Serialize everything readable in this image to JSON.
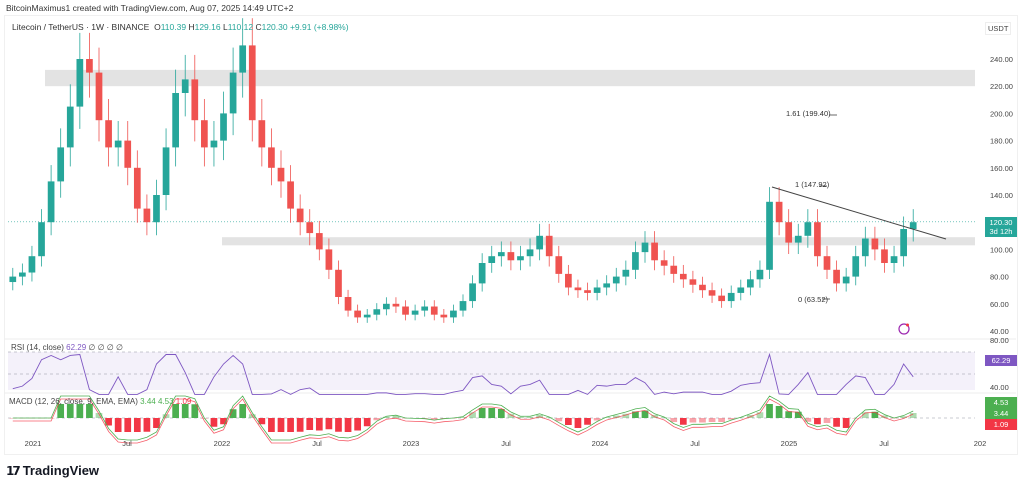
{
  "attribution": "BitcoinMaximus1 created with TradingView.com, Aug 07, 2025 14:49 UTC+2",
  "symbol": {
    "pair": "Litecoin / TetherUS",
    "interval": "1W",
    "exchange": "BINANCE",
    "open_label": "O",
    "open": "110.39",
    "high_label": "H",
    "high": "129.16",
    "low_label": "L",
    "low": "110.12",
    "close_label": "C",
    "close": "120.30",
    "change": "+9.91 (+8.98%)"
  },
  "price_axis": {
    "currency": "USDT",
    "ticks": [
      "240.00",
      "220.00",
      "200.00",
      "180.00",
      "160.00",
      "140.00",
      "100.00",
      "80.00",
      "60.00",
      "40.00"
    ],
    "current_price": "120.30",
    "countdown": "3d 12h"
  },
  "time_axis": {
    "ticks": [
      "2021",
      "Jul",
      "2022",
      "Jul",
      "2023",
      "Jul",
      "2024",
      "Jul",
      "2025",
      "Jul",
      "202"
    ]
  },
  "fib_levels": [
    {
      "label": "1.61 (199.40)"
    },
    {
      "label": "1 (147.92)"
    },
    {
      "label": "0 (63.52)"
    }
  ],
  "rsi": {
    "legend": "RSI (14, close)",
    "value": "62.29",
    "extra": "∅ ∅ ∅ ∅",
    "axis_ticks": [
      "80.00",
      "40.00"
    ],
    "tag": "62.29"
  },
  "macd": {
    "legend": "MACD (12, 26, close, 9, EMA, EMA)",
    "v1": "3.44",
    "v2": "4.53",
    "v3": "1.09",
    "tags": [
      "4.53",
      "3.44",
      "1.09"
    ]
  },
  "brand": "TradingView",
  "colors": {
    "up": "#26a69a",
    "down": "#ef5350",
    "rsi": "#7e57c2",
    "zone": "#e3e3e3",
    "macd_up": "#4caf50",
    "macd_down": "#f23645"
  },
  "chart_data": {
    "type": "candlestick",
    "title": "Litecoin / TetherUS · 1W · BINANCE",
    "ylabel": "USDT",
    "ylim": [
      40,
      260
    ],
    "x_ticks": [
      "2021",
      "Jul",
      "2022",
      "Jul",
      "2023",
      "Jul",
      "2024",
      "Jul",
      "2025",
      "Jul"
    ],
    "support_resistance_zones": [
      [
        220,
        232
      ],
      [
        103,
        109
      ]
    ],
    "trendline": {
      "from": [
        2024.9,
        146
      ],
      "to": [
        2025.75,
        106
      ]
    },
    "fibonacci": {
      "0": 63.52,
      "1": 147.92,
      "1.61": 199.4
    },
    "last": {
      "open": 110.39,
      "high": 129.16,
      "low": 110.12,
      "close": 120.3,
      "change": 9.91,
      "change_pct": 8.98
    },
    "closes_approx": [
      80,
      83,
      95,
      120,
      150,
      175,
      205,
      240,
      230,
      195,
      175,
      180,
      160,
      130,
      120,
      140,
      175,
      215,
      225,
      195,
      175,
      180,
      200,
      230,
      250,
      195,
      175,
      160,
      150,
      130,
      120,
      112,
      100,
      85,
      65,
      55,
      50,
      52,
      56,
      60,
      58,
      52,
      55,
      58,
      52,
      50,
      55,
      62,
      75,
      90,
      95,
      98,
      92,
      95,
      100,
      110,
      95,
      82,
      72,
      70,
      68,
      72,
      75,
      80,
      85,
      98,
      105,
      92,
      88,
      82,
      78,
      74,
      70,
      66,
      62,
      68,
      72,
      78,
      85,
      135,
      120,
      105,
      110,
      120,
      95,
      85,
      75,
      80,
      95,
      108,
      100,
      90,
      95,
      115,
      120
    ],
    "rsi": {
      "value": 62.29,
      "bands": [
        30,
        70
      ]
    },
    "macd": {
      "macd": 4.53,
      "signal": 3.44,
      "hist": 1.09
    }
  }
}
